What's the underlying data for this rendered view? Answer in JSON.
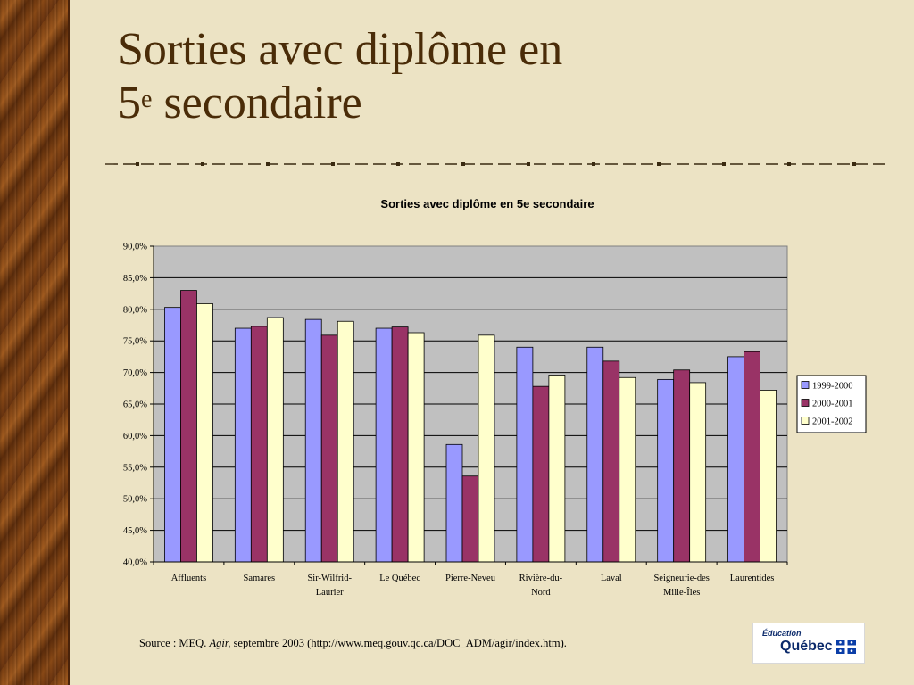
{
  "slide": {
    "title_line1": "Sorties avec diplôme en",
    "title_line2_num": "5",
    "title_line2_sup": "e",
    "title_line2_rest": " secondaire",
    "source_prefix": "Source : MEQ. ",
    "source_italic": "Agir,",
    "source_rest": " septembre 2003 (http://www.meq.gouv.qc.ca/DOC_ADM/agir/index.htm).",
    "logo_small": "Éducation",
    "logo_big": "Québec"
  },
  "colors": {
    "background": "#ece3c4",
    "title": "#4a2c08",
    "plot_bg": "#c0c0c0",
    "series": [
      "#9999ff",
      "#993366",
      "#ffffcc"
    ]
  },
  "chart_data": {
    "type": "bar",
    "title": "Sorties avec diplôme en 5e secondaire",
    "categories": [
      "Affluents",
      "Samares",
      "Sir-Wilfrid-Laurier",
      "Le Québec",
      "Pierre-Neveu",
      "Rivière-du-Nord",
      "Laval",
      "Seigneurie-des Mille-Îles",
      "Laurentides"
    ],
    "category_lines": [
      [
        "Affluents"
      ],
      [
        "Samares"
      ],
      [
        "Sir-Wilfrid-",
        "Laurier"
      ],
      [
        "Le Québec"
      ],
      [
        "Pierre-Neveu"
      ],
      [
        "Rivière-du-",
        "Nord"
      ],
      [
        "Laval"
      ],
      [
        "Seigneurie-des",
        "Mille-Îles"
      ],
      [
        "Laurentides"
      ]
    ],
    "series": [
      {
        "name": "1999-2000",
        "values": [
          80.3,
          77.0,
          78.4,
          77.0,
          58.6,
          74.0,
          74.0,
          68.9,
          72.5
        ]
      },
      {
        "name": "2000-2001",
        "values": [
          83.0,
          77.3,
          75.9,
          77.2,
          53.6,
          67.8,
          71.8,
          70.4,
          73.3
        ]
      },
      {
        "name": "2001-2002",
        "values": [
          80.9,
          78.7,
          78.1,
          76.3,
          75.9,
          69.6,
          69.2,
          68.4,
          67.2
        ]
      }
    ],
    "ylim": [
      40,
      90
    ],
    "ytick_step": 5,
    "ytick_labels": [
      "40,0%",
      "45,0%",
      "50,0%",
      "55,0%",
      "60,0%",
      "65,0%",
      "70,0%",
      "75,0%",
      "80,0%",
      "85,0%",
      "90,0%"
    ],
    "grid": true,
    "legend_position": "right"
  }
}
